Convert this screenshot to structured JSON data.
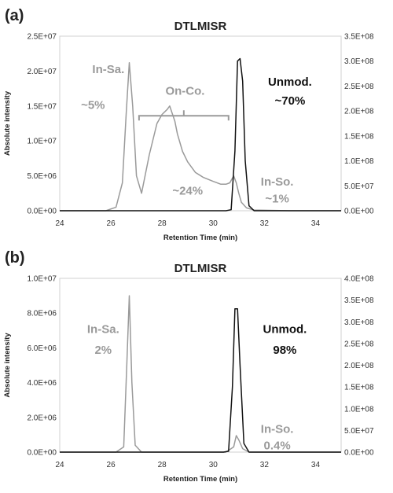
{
  "chart_data": [
    {
      "type": "line",
      "panel_label": "(a)",
      "title": "DTLMISR",
      "xlabel": "Retention Time (min)",
      "ylabel": "Absolute intensity",
      "xlim": [
        24,
        35
      ],
      "x_ticks": [
        "24",
        "26",
        "28",
        "30",
        "32",
        "34"
      ],
      "ylim_left": [
        0,
        25000000
      ],
      "y_ticks_left": [
        "0.0E+00",
        "5.0E+06",
        "1.0E+07",
        "1.5E+07",
        "2.0E+07",
        "2.5E+07"
      ],
      "ylim_right": [
        0,
        350000000
      ],
      "y_ticks_right": [
        "0.0E+00",
        "5.0E+07",
        "1.0E+08",
        "1.5E+08",
        "2.0E+08",
        "2.5E+08",
        "3.0E+08",
        "3.5E+08"
      ],
      "grid": false,
      "series": [
        {
          "color": "#9a9a9a",
          "axis": "left",
          "x": [
            24.0,
            25.8,
            26.2,
            26.45,
            26.6,
            26.72,
            26.85,
            27.0,
            27.2,
            27.5,
            27.8,
            28.0,
            28.2,
            28.3,
            28.5,
            28.6,
            28.8,
            29.0,
            29.3,
            29.6,
            30.0,
            30.3,
            30.5,
            30.65,
            30.8,
            30.9,
            31.0,
            31.1,
            31.3,
            31.6,
            33.0,
            35.0
          ],
          "y": [
            0,
            0,
            500000,
            4000000,
            14000000,
            21200000,
            15000000,
            5000000,
            2500000,
            8000000,
            12500000,
            13800000,
            14500000,
            15000000,
            12800000,
            11000000,
            8500000,
            7000000,
            5500000,
            4800000,
            4200000,
            3800000,
            3800000,
            4000000,
            5000000,
            4000000,
            2500000,
            1200000,
            400000,
            100000,
            0,
            0
          ]
        },
        {
          "color": "#111111",
          "axis": "right",
          "x": [
            24.0,
            30.5,
            30.7,
            30.85,
            30.95,
            31.05,
            31.15,
            31.25,
            31.4,
            31.6,
            35.0
          ],
          "y": [
            0,
            0,
            2000000,
            120000000,
            300000000,
            305000000,
            260000000,
            100000000,
            10000000,
            0,
            0
          ]
        }
      ],
      "annotations": [
        {
          "text": "In-Sa.",
          "color": "#9a9a9a",
          "x": 25.9,
          "y": 19700000
        },
        {
          "text": "~5%",
          "color": "#9a9a9a",
          "x": 25.3,
          "y": 14600000
        },
        {
          "text": "On-Co.",
          "color": "#9a9a9a",
          "x": 28.9,
          "y": 16600000
        },
        {
          "text": "~24%",
          "color": "#9a9a9a",
          "x": 29.0,
          "y": 2300000
        },
        {
          "text": "In-So.",
          "color": "#9a9a9a",
          "x": 32.5,
          "y": 3600000
        },
        {
          "text": "~1%",
          "color": "#9a9a9a",
          "x": 32.5,
          "y": 1200000
        },
        {
          "text": "Unmod.",
          "color": "#111111",
          "x": 33.0,
          "y": 17900000
        },
        {
          "text": "~70%",
          "color": "#111111",
          "x": 33.0,
          "y": 15200000
        }
      ],
      "bracket": {
        "x_start": 27.1,
        "x_end": 30.6,
        "y": 13600000
      }
    },
    {
      "type": "line",
      "panel_label": "(b)",
      "title": "DTLMISR",
      "xlabel": "Retention Time (min)",
      "ylabel": "Absolute intensity",
      "xlim": [
        24,
        35
      ],
      "x_ticks": [
        "24",
        "26",
        "28",
        "30",
        "32",
        "34"
      ],
      "ylim_left": [
        0,
        10000000
      ],
      "y_ticks_left": [
        "0.0E+00",
        "2.0E+06",
        "4.0E+06",
        "6.0E+06",
        "8.0E+06",
        "1.0E+07"
      ],
      "ylim_right": [
        0,
        400000000
      ],
      "y_ticks_right": [
        "0.0E+00",
        "5.0E+07",
        "1.0E+08",
        "1.5E+08",
        "2.0E+08",
        "2.5E+08",
        "3.0E+08",
        "3.5E+08",
        "4.0E+08"
      ],
      "grid": false,
      "series": [
        {
          "color": "#9a9a9a",
          "axis": "left",
          "x": [
            24.0,
            26.2,
            26.5,
            26.62,
            26.72,
            26.82,
            26.95,
            27.2,
            30.5,
            30.8,
            30.9,
            31.0,
            31.15,
            31.4,
            35.0
          ],
          "y": [
            0,
            0,
            300000,
            5000000,
            9000000,
            4000000,
            400000,
            0,
            0,
            300000,
            950000,
            700000,
            200000,
            0,
            0
          ]
        },
        {
          "color": "#111111",
          "axis": "right",
          "x": [
            24.0,
            30.4,
            30.6,
            30.75,
            30.85,
            30.95,
            31.05,
            31.2,
            31.4,
            35.0
          ],
          "y": [
            0,
            0,
            2000000,
            150000000,
            330000000,
            330000000,
            200000000,
            20000000,
            0,
            0
          ]
        }
      ],
      "annotations": [
        {
          "text": "In-Sa.",
          "color": "#9a9a9a",
          "x": 25.7,
          "y": 6850000
        },
        {
          "text": "2%",
          "color": "#9a9a9a",
          "x": 25.7,
          "y": 5650000
        },
        {
          "text": "Unmod.",
          "color": "#111111",
          "x": 32.8,
          "y": 6850000
        },
        {
          "text": "98%",
          "color": "#111111",
          "x": 32.8,
          "y": 5650000
        },
        {
          "text": "In-So.",
          "color": "#9a9a9a",
          "x": 32.5,
          "y": 1100000
        },
        {
          "text": "0.4%",
          "color": "#9a9a9a",
          "x": 32.5,
          "y": 150000
        }
      ]
    }
  ]
}
